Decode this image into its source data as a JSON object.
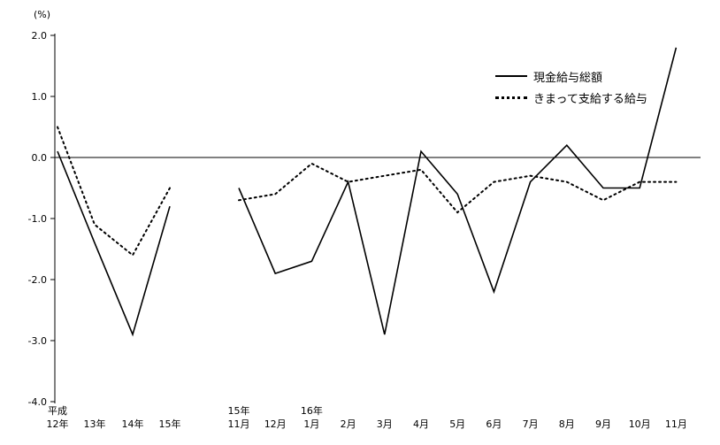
{
  "chart_data": {
    "type": "line",
    "title": "",
    "unit_label": "(%)",
    "ylim": [
      -4.0,
      2.0
    ],
    "yticks": [
      "2.0",
      "1.0",
      "0.0",
      "-1.0",
      "-2.0",
      "-3.0",
      "-4.0"
    ],
    "ytick_values": [
      2.0,
      1.0,
      0.0,
      -1.0,
      -2.0,
      -3.0,
      -4.0
    ],
    "grid": false,
    "legend_position": "top-right",
    "legend": [
      {
        "name": "現金給与総額",
        "style": "solid"
      },
      {
        "name": "きまって支給する給与",
        "style": "dotted"
      }
    ],
    "colors": {
      "line": "#000000",
      "axis": "#000000",
      "background": "#ffffff"
    },
    "groups": [
      {
        "group_name": "annual",
        "x_labels": [
          {
            "top": "平成",
            "bottom": "12年"
          },
          {
            "top": "",
            "bottom": "13年"
          },
          {
            "top": "",
            "bottom": "14年"
          },
          {
            "top": "",
            "bottom": "15年"
          }
        ],
        "series": [
          {
            "name": "現金給与総額",
            "style": "solid",
            "values": [
              0.1,
              -1.4,
              -2.9,
              -0.8
            ]
          },
          {
            "name": "きまって支給する給与",
            "style": "dotted",
            "values": [
              0.5,
              -1.1,
              -1.6,
              -0.5
            ]
          }
        ]
      },
      {
        "group_name": "monthly",
        "x_labels": [
          {
            "top": "15年",
            "bottom": "11月"
          },
          {
            "top": "",
            "bottom": "12月"
          },
          {
            "top": "16年",
            "bottom": "1月"
          },
          {
            "top": "",
            "bottom": "2月"
          },
          {
            "top": "",
            "bottom": "3月"
          },
          {
            "top": "",
            "bottom": "4月"
          },
          {
            "top": "",
            "bottom": "5月"
          },
          {
            "top": "",
            "bottom": "6月"
          },
          {
            "top": "",
            "bottom": "7月"
          },
          {
            "top": "",
            "bottom": "8月"
          },
          {
            "top": "",
            "bottom": "9月"
          },
          {
            "top": "",
            "bottom": "10月"
          },
          {
            "top": "",
            "bottom": "11月"
          }
        ],
        "series": [
          {
            "name": "現金給与総額",
            "style": "solid",
            "values": [
              -0.5,
              -1.9,
              -1.7,
              -0.4,
              -2.9,
              0.1,
              -0.6,
              -2.2,
              -0.4,
              0.2,
              -0.5,
              -0.5,
              1.8
            ]
          },
          {
            "name": "きまって支給する給与",
            "style": "dotted",
            "values": [
              -0.7,
              -0.6,
              -0.1,
              -0.4,
              -0.3,
              -0.2,
              -0.9,
              -0.4,
              -0.3,
              -0.4,
              -0.7,
              -0.4,
              -0.4
            ]
          }
        ]
      }
    ]
  }
}
